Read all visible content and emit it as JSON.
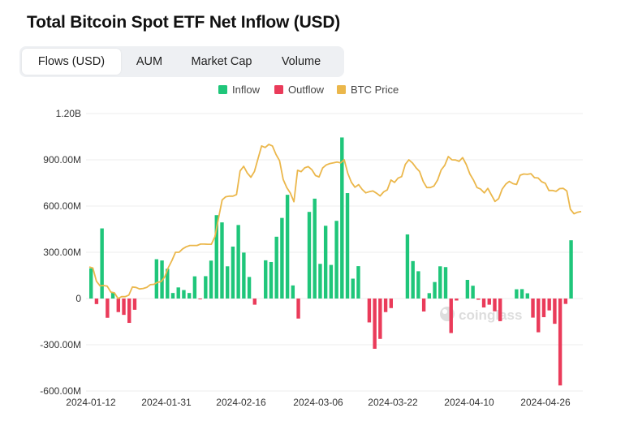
{
  "title": "Total Bitcoin Spot ETF Net Inflow (USD)",
  "tabs": [
    {
      "label": "Flows (USD)",
      "active": true
    },
    {
      "label": "AUM",
      "active": false
    },
    {
      "label": "Market Cap",
      "active": false
    },
    {
      "label": "Volume",
      "active": false
    }
  ],
  "watermark": "coinglass",
  "colors": {
    "inflow": "#1fc67a",
    "outflow": "#ea3b5a",
    "btc_price": "#ebb74b",
    "grid": "#eeeeee",
    "axis_text": "#333333"
  },
  "chart_data": {
    "type": "bar",
    "title": "Total Bitcoin Spot ETF Net Inflow (USD)",
    "legend": [
      "Inflow",
      "Outflow",
      "BTC Price"
    ],
    "legend_position": "top-center",
    "y_ticks": [
      "1.20B",
      "900.00M",
      "600.00M",
      "300.00M",
      "0",
      "-300.00M",
      "-600.00M"
    ],
    "ylim_musd": [
      -600,
      1200
    ],
    "x_tick_labels": [
      "2024-01-12",
      "2024-01-31",
      "2024-02-16",
      "2024-03-06",
      "2024-03-22",
      "2024-04-10",
      "2024-04-26"
    ],
    "grid": true,
    "net_flow_musd": [
      196,
      -36,
      455,
      -125,
      40,
      -88,
      -106,
      -158,
      -73,
      0,
      0,
      0,
      255,
      247,
      193,
      36,
      72,
      55,
      36,
      144,
      -2,
      145,
      246,
      541,
      494,
      209,
      337,
      477,
      298,
      140,
      -40,
      0,
      248,
      237,
      401,
      523,
      673,
      85,
      -130,
      0,
      562,
      648,
      225,
      472,
      218,
      504,
      1045,
      684,
      129,
      210,
      0,
      -155,
      -326,
      -262,
      -88,
      -62,
      0,
      0,
      416,
      243,
      177,
      -84,
      35,
      107,
      209,
      204,
      -224,
      -13,
      0,
      121,
      83,
      -8,
      -58,
      -40,
      -83,
      -147,
      0,
      0,
      60,
      61,
      34,
      -124,
      -219,
      -121,
      -77,
      -164,
      -564,
      -35,
      378
    ],
    "btc_price_musd_scale": [
      205,
      198,
      112,
      82,
      84,
      80,
      42,
      37,
      0,
      12,
      12,
      22,
      75,
      72,
      62,
      65,
      72,
      90,
      92,
      105,
      110,
      140,
      200,
      245,
      300,
      300,
      322,
      336,
      344,
      344,
      344,
      353,
      353,
      352,
      352,
      402,
      521,
      640,
      660,
      664,
      664,
      675,
      828,
      858,
      815,
      787,
      825,
      908,
      990,
      980,
      1000,
      990,
      935,
      894,
      772,
      720,
      684,
      628,
      832,
      823,
      848,
      856,
      836,
      798,
      789,
      847,
      867,
      876,
      880,
      885,
      880,
      900,
      812,
      754,
      722,
      739,
      708,
      686,
      693,
      698,
      683,
      666,
      692,
      705,
      769,
      753,
      781,
      791,
      870,
      900,
      880,
      849,
      824,
      759,
      720,
      720,
      730,
      769,
      834,
      864,
      921,
      900,
      899,
      890,
      914,
      869,
      808,
      769,
      720,
      710,
      685,
      715,
      672,
      630,
      648,
      710,
      742,
      760,
      745,
      740,
      800,
      808,
      806,
      810,
      784,
      782,
      758,
      748,
      701,
      701,
      695,
      713,
      715,
      698,
      579,
      550,
      560,
      564
    ]
  }
}
